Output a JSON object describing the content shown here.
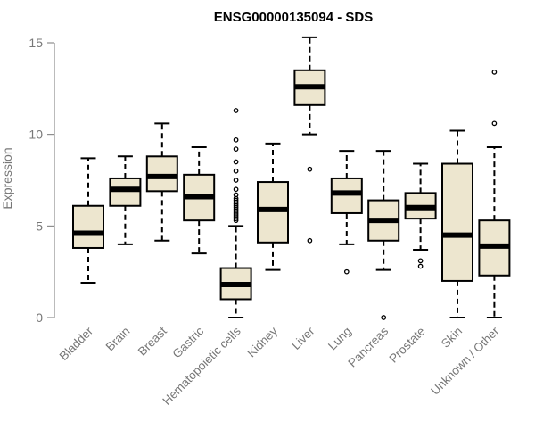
{
  "colors": {
    "box_fill": "#ede6cf",
    "stroke": "#000000",
    "axis": "#777777",
    "text_muted": "#777777"
  },
  "chart_data": {
    "type": "boxplot",
    "title": "ENSG00000135094 - SDS",
    "xlabel": "",
    "ylabel": "Expression",
    "ylim": [
      0,
      15
    ],
    "yticks": [
      0,
      5,
      10,
      15
    ],
    "ytick_labels": [
      "0",
      "5",
      "10",
      "15"
    ],
    "grid": false,
    "categories": [
      "Bladder",
      "Brain",
      "Breast",
      "Gastric",
      "Hematopoietic cells",
      "Kidney",
      "Liver",
      "Lung",
      "Pancreas",
      "Prostate",
      "Skin",
      "Unknown / Other"
    ],
    "boxes": [
      {
        "name": "Bladder",
        "min": 1.9,
        "q1": 3.8,
        "median": 4.6,
        "q3": 6.1,
        "max": 8.7,
        "outliers": []
      },
      {
        "name": "Brain",
        "min": 4.0,
        "q1": 6.1,
        "median": 7.0,
        "q3": 7.6,
        "max": 8.8,
        "outliers": []
      },
      {
        "name": "Breast",
        "min": 4.2,
        "q1": 6.9,
        "median": 7.7,
        "q3": 8.8,
        "max": 10.6,
        "outliers": []
      },
      {
        "name": "Gastric",
        "min": 3.5,
        "q1": 5.3,
        "median": 6.6,
        "q3": 7.8,
        "max": 9.3,
        "outliers": []
      },
      {
        "name": "Hematopoietic cells",
        "min": 0.0,
        "q1": 1.0,
        "median": 1.8,
        "q3": 2.7,
        "max": 5.0,
        "outliers": [
          5.3,
          5.4,
          5.5,
          5.6,
          5.7,
          5.8,
          5.9,
          6.0,
          6.1,
          6.2,
          6.3,
          6.4,
          6.5,
          6.7,
          7.0,
          7.5,
          8.0,
          8.5,
          9.2,
          9.7,
          11.3
        ]
      },
      {
        "name": "Kidney",
        "min": 2.6,
        "q1": 4.1,
        "median": 5.9,
        "q3": 7.4,
        "max": 9.5,
        "outliers": []
      },
      {
        "name": "Liver",
        "min": 10.0,
        "q1": 11.6,
        "median": 12.6,
        "q3": 13.5,
        "max": 15.3,
        "outliers": [
          8.1,
          4.2
        ]
      },
      {
        "name": "Lung",
        "min": 4.0,
        "q1": 5.7,
        "median": 6.8,
        "q3": 7.6,
        "max": 9.1,
        "outliers": [
          2.5
        ]
      },
      {
        "name": "Pancreas",
        "min": 2.6,
        "q1": 4.2,
        "median": 5.3,
        "q3": 6.4,
        "max": 9.1,
        "outliers": [
          0.0
        ]
      },
      {
        "name": "Prostate",
        "min": 3.7,
        "q1": 5.4,
        "median": 6.0,
        "q3": 6.8,
        "max": 8.4,
        "outliers": [
          3.1,
          2.8
        ]
      },
      {
        "name": "Skin",
        "min": 0.0,
        "q1": 2.0,
        "median": 4.5,
        "q3": 8.4,
        "max": 10.2,
        "outliers": []
      },
      {
        "name": "Unknown / Other",
        "min": 0.0,
        "q1": 2.3,
        "median": 3.9,
        "q3": 5.3,
        "max": 9.3,
        "outliers": [
          10.6,
          13.4
        ]
      }
    ]
  }
}
